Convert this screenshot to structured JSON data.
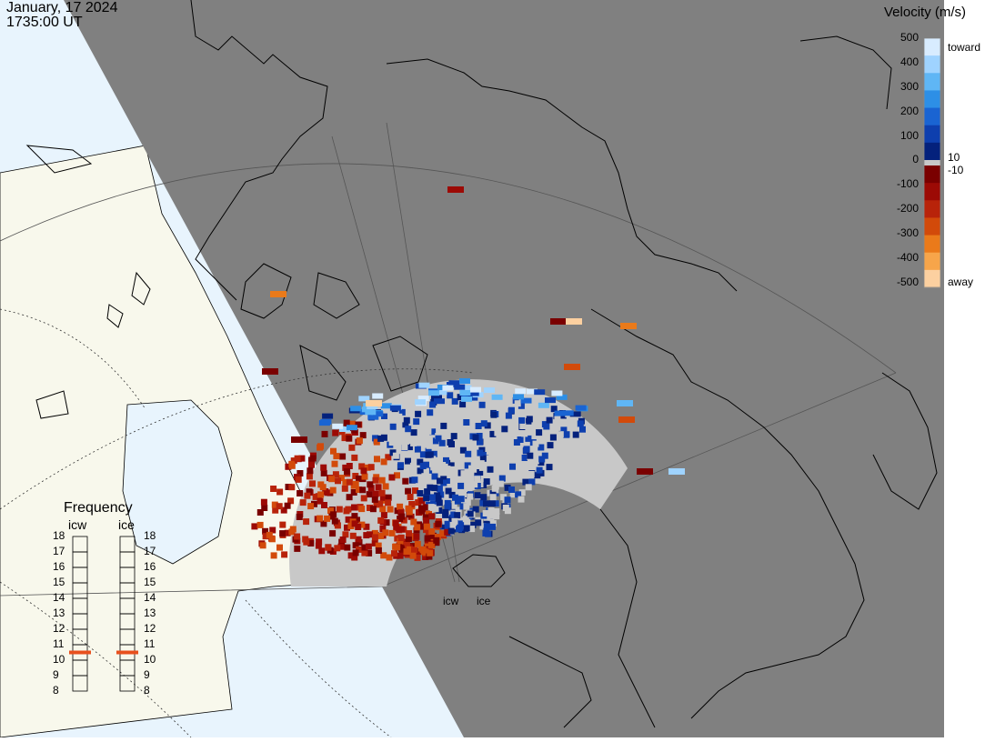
{
  "header": {
    "date": "January, 17 2024",
    "time": "1735:00 UT"
  },
  "velocity_scale": {
    "title": "Velocity (m/s)",
    "tick_labels": [
      "500",
      "400",
      "300",
      "200",
      "100",
      "10",
      "0",
      "-10",
      "-100",
      "-200",
      "-300",
      "-400",
      "-500"
    ],
    "toward_label": "toward",
    "away_label": "away",
    "colors_toward": [
      "#d8ecff",
      "#9fd3ff",
      "#5fb6f5",
      "#2d8fe6",
      "#1a64d2",
      "#0e3fae",
      "#04217c"
    ],
    "colors_away": [
      "#7a0000",
      "#9c0a05",
      "#b8230a",
      "#d24a0a",
      "#ea7a1a",
      "#f7a54a",
      "#fcd0a0"
    ],
    "ground_scatter_color": "#c8c8c8"
  },
  "frequency_panel": {
    "title": "Frequency",
    "radars": [
      {
        "name": "icw",
        "frequency_mhz": 10.5
      },
      {
        "name": "ice",
        "frequency_mhz": 10.5
      }
    ],
    "ticks": [
      "18",
      "17",
      "16",
      "15",
      "14",
      "13",
      "12",
      "11",
      "10",
      "9",
      "8"
    ],
    "indicator_color": "#e8501e"
  },
  "map": {
    "radar_site_labels": [
      "icw",
      "ice"
    ],
    "night_color": "#808080",
    "day_ocean_color": "#e8f4fd",
    "day_land_color": "#f8f8ec"
  }
}
